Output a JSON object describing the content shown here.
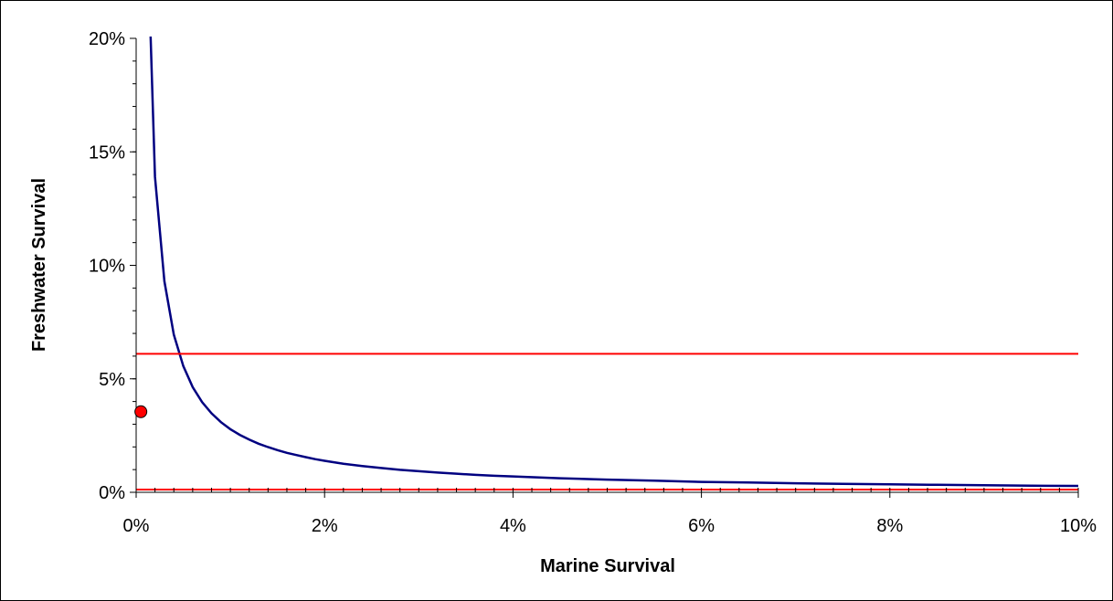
{
  "chart_data": {
    "type": "line",
    "title": "",
    "xlabel": "Marine Survival",
    "ylabel": "Freshwater Survival",
    "xlim": [
      0,
      0.1
    ],
    "ylim": [
      0,
      0.2
    ],
    "x_ticks": [
      0,
      0.02,
      0.04,
      0.06,
      0.08,
      0.1
    ],
    "x_tick_labels": [
      "0%",
      "2%",
      "4%",
      "6%",
      "8%",
      "10%"
    ],
    "y_ticks": [
      0,
      0.05,
      0.1,
      0.15,
      0.2
    ],
    "y_tick_labels": [
      "0%",
      "5%",
      "10%",
      "15%",
      "20%"
    ],
    "grid": false,
    "legend": "none",
    "series": [
      {
        "type": "line",
        "color": "#000080",
        "points": [
          [
            0.0015,
            0.205
          ],
          [
            0.002,
            0.139
          ],
          [
            0.003,
            0.093
          ],
          [
            0.004,
            0.0695
          ],
          [
            0.005,
            0.0556
          ],
          [
            0.006,
            0.0463
          ],
          [
            0.007,
            0.0397
          ],
          [
            0.008,
            0.0348
          ],
          [
            0.009,
            0.0309
          ],
          [
            0.01,
            0.0278
          ],
          [
            0.011,
            0.0253
          ],
          [
            0.012,
            0.0232
          ],
          [
            0.013,
            0.0214
          ],
          [
            0.014,
            0.0199
          ],
          [
            0.015,
            0.0186
          ],
          [
            0.016,
            0.0174
          ],
          [
            0.017,
            0.0164
          ],
          [
            0.018,
            0.0155
          ],
          [
            0.019,
            0.0146
          ],
          [
            0.02,
            0.0139
          ],
          [
            0.022,
            0.0126
          ],
          [
            0.024,
            0.0116
          ],
          [
            0.026,
            0.0107
          ],
          [
            0.028,
            0.0099
          ],
          [
            0.03,
            0.0093
          ],
          [
            0.032,
            0.0087
          ],
          [
            0.034,
            0.0082
          ],
          [
            0.036,
            0.0077
          ],
          [
            0.038,
            0.0073
          ],
          [
            0.04,
            0.007
          ],
          [
            0.045,
            0.0062
          ],
          [
            0.05,
            0.0056
          ],
          [
            0.055,
            0.0051
          ],
          [
            0.06,
            0.0046
          ],
          [
            0.065,
            0.0043
          ],
          [
            0.07,
            0.004
          ],
          [
            0.075,
            0.0037
          ],
          [
            0.08,
            0.0035
          ],
          [
            0.085,
            0.0033
          ],
          [
            0.09,
            0.0031
          ],
          [
            0.095,
            0.0029
          ],
          [
            0.1,
            0.0028
          ]
        ]
      },
      {
        "type": "hline",
        "color": "#ff0000",
        "y": 0.061,
        "x_range": [
          0,
          0.1
        ]
      },
      {
        "type": "hline",
        "color": "#ff0000",
        "y": 0.0012,
        "x_range": [
          0,
          0.1
        ]
      },
      {
        "type": "point",
        "color": "#ff0000",
        "x": 0.0005,
        "y": 0.0355
      }
    ]
  }
}
